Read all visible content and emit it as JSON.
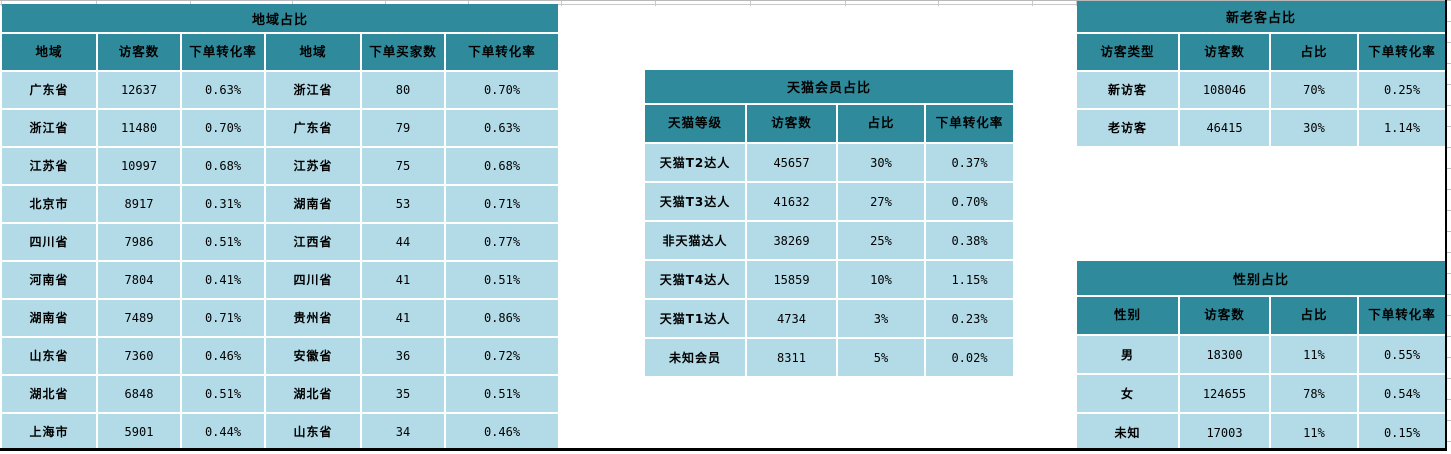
{
  "colors": {
    "header_teal": "#2F8A9B",
    "cell_blue": "#B3DBE7",
    "gridline_gray": "#C9C9C9",
    "range_border_black": "#000000"
  },
  "tables": {
    "region": {
      "title": "地域占比",
      "headers": [
        "地域",
        "访客数",
        "下单转化率",
        "地域",
        "下单买家数",
        "下单转化率"
      ],
      "rows": [
        [
          "广东省",
          "12637",
          "0.63%",
          "浙江省",
          "80",
          "0.70%"
        ],
        [
          "浙江省",
          "11480",
          "0.70%",
          "广东省",
          "79",
          "0.63%"
        ],
        [
          "江苏省",
          "10997",
          "0.68%",
          "江苏省",
          "75",
          "0.68%"
        ],
        [
          "北京市",
          "8917",
          "0.31%",
          "湖南省",
          "53",
          "0.71%"
        ],
        [
          "四川省",
          "7986",
          "0.51%",
          "江西省",
          "44",
          "0.77%"
        ],
        [
          "河南省",
          "7804",
          "0.41%",
          "四川省",
          "41",
          "0.51%"
        ],
        [
          "湖南省",
          "7489",
          "0.71%",
          "贵州省",
          "41",
          "0.86%"
        ],
        [
          "山东省",
          "7360",
          "0.46%",
          "安徽省",
          "36",
          "0.72%"
        ],
        [
          "湖北省",
          "6848",
          "0.51%",
          "湖北省",
          "35",
          "0.51%"
        ],
        [
          "上海市",
          "5901",
          "0.44%",
          "山东省",
          "34",
          "0.46%"
        ]
      ]
    },
    "tmall_member": {
      "title": "天猫会员占比",
      "headers": [
        "天猫等级",
        "访客数",
        "占比",
        "下单转化率"
      ],
      "rows": [
        [
          "天猫T2达人",
          "45657",
          "30%",
          "0.37%"
        ],
        [
          "天猫T3达人",
          "41632",
          "27%",
          "0.70%"
        ],
        [
          "非天猫达人",
          "38269",
          "25%",
          "0.38%"
        ],
        [
          "天猫T4达人",
          "15859",
          "10%",
          "1.15%"
        ],
        [
          "天猫T1达人",
          "4734",
          "3%",
          "0.23%"
        ],
        [
          "未知会员",
          "8311",
          "5%",
          "0.02%"
        ]
      ]
    },
    "new_old_visitor": {
      "title": "新老客占比",
      "headers": [
        "访客类型",
        "访客数",
        "占比",
        "下单转化率"
      ],
      "rows": [
        [
          "新访客",
          "108046",
          "70%",
          "0.25%"
        ],
        [
          "老访客",
          "46415",
          "30%",
          "1.14%"
        ]
      ]
    },
    "gender": {
      "title": "性别占比",
      "headers": [
        "性别",
        "访客数",
        "占比",
        "下单转化率"
      ],
      "rows": [
        [
          "男",
          "18300",
          "11%",
          "0.55%"
        ],
        [
          "女",
          "124655",
          "78%",
          "0.54%"
        ],
        [
          "未知",
          "17003",
          "11%",
          "0.15%"
        ]
      ]
    }
  }
}
